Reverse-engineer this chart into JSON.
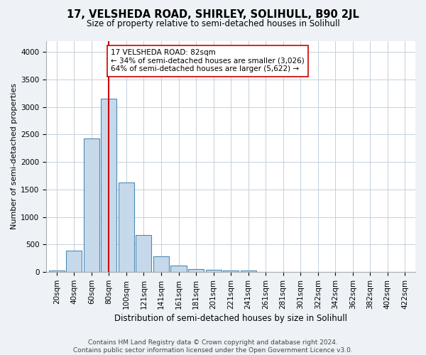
{
  "title": "17, VELSHEDA ROAD, SHIRLEY, SOLIHULL, B90 2JL",
  "subtitle": "Size of property relative to semi-detached houses in Solihull",
  "xlabel": "Distribution of semi-detached houses by size in Solihull",
  "ylabel": "Number of semi-detached properties",
  "footer_line1": "Contains HM Land Registry data © Crown copyright and database right 2024.",
  "footer_line2": "Contains public sector information licensed under the Open Government Licence v3.0.",
  "bar_labels": [
    "20sqm",
    "40sqm",
    "60sqm",
    "80sqm",
    "100sqm",
    "121sqm",
    "141sqm",
    "161sqm",
    "181sqm",
    "201sqm",
    "221sqm",
    "241sqm",
    "261sqm",
    "281sqm",
    "301sqm",
    "322sqm",
    "342sqm",
    "362sqm",
    "382sqm",
    "402sqm",
    "422sqm"
  ],
  "bar_values": [
    30,
    390,
    2430,
    3150,
    1630,
    670,
    290,
    125,
    55,
    45,
    30,
    25,
    0,
    0,
    0,
    0,
    0,
    0,
    0,
    0,
    0
  ],
  "bar_color": "#c6d9ea",
  "bar_edge_color": "#4d8bb5",
  "highlight_index": 3,
  "highlight_line_color": "#cc0000",
  "annotation_line1": "17 VELSHEDA ROAD: 82sqm",
  "annotation_line2": "← 34% of semi-detached houses are smaller (3,026)",
  "annotation_line3": "64% of semi-detached houses are larger (5,622) →",
  "annotation_box_edge_color": "#cc0000",
  "annotation_box_face_color": "#ffffff",
  "ylim": [
    0,
    4200
  ],
  "yticks": [
    0,
    500,
    1000,
    1500,
    2000,
    2500,
    3000,
    3500,
    4000
  ],
  "bg_color": "#eef2f7",
  "plot_bg_color": "#ffffff",
  "grid_color": "#c5d0dc",
  "title_fontsize": 10.5,
  "subtitle_fontsize": 8.5,
  "ylabel_fontsize": 8,
  "xlabel_fontsize": 8.5,
  "tick_fontsize": 7.5,
  "footer_fontsize": 6.5
}
